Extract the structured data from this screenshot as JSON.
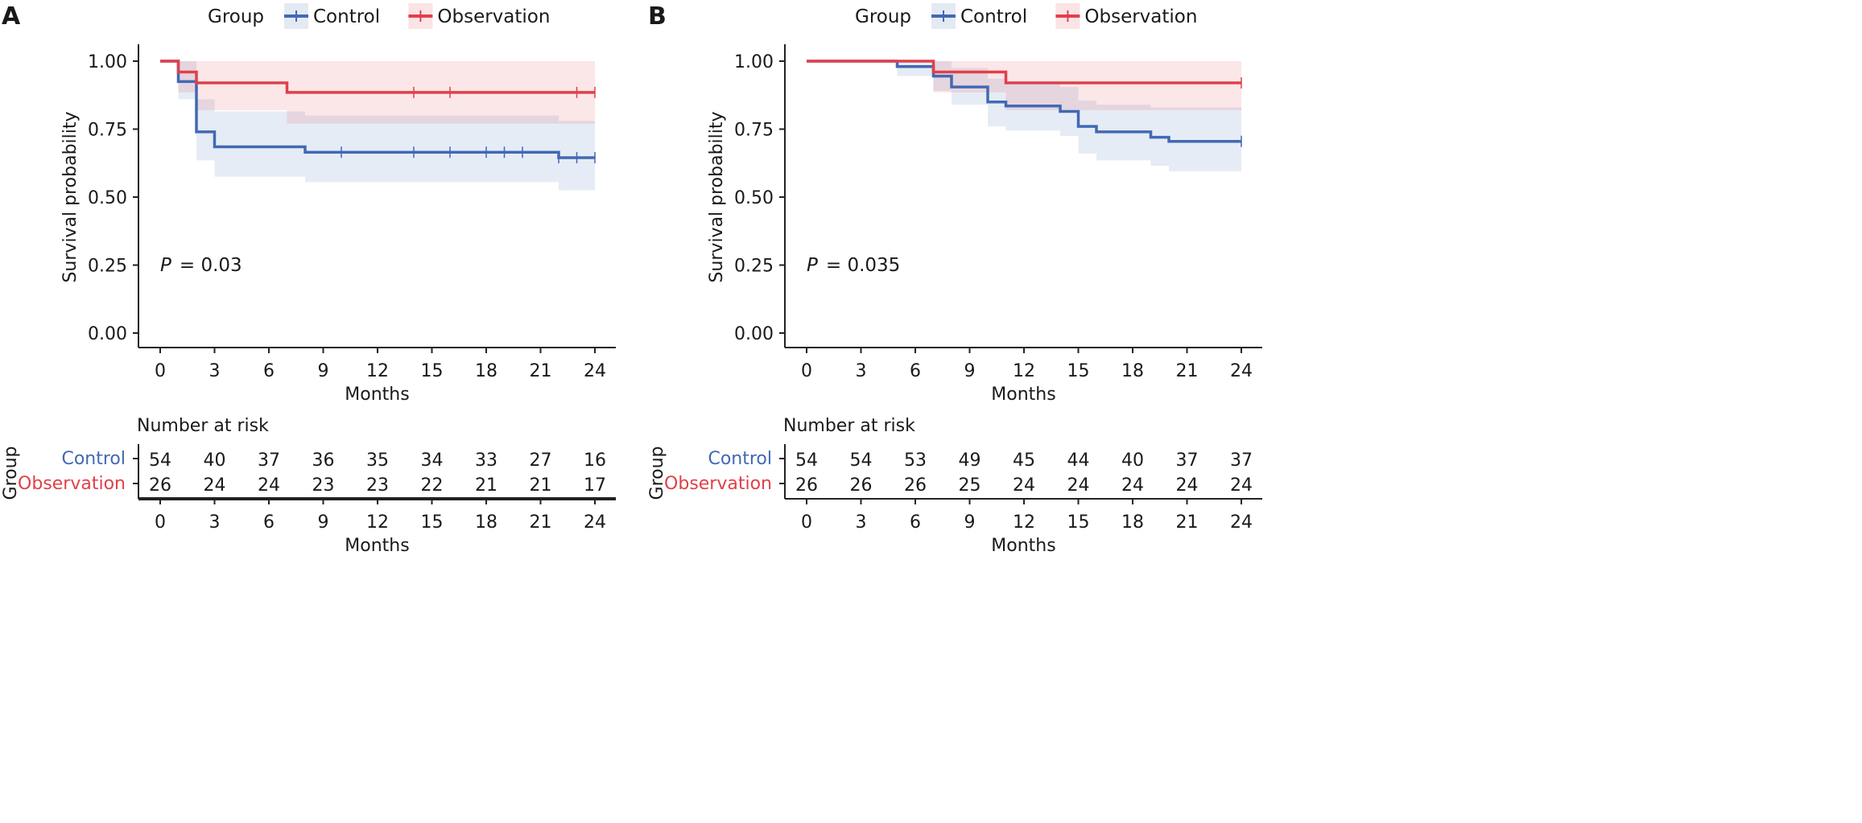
{
  "chart_data": [
    {
      "panel_label": "A",
      "type": "line",
      "legend_title": "Group",
      "xlabel": "Months",
      "ylabel": "Survival probability",
      "xlim": [
        0,
        24
      ],
      "ylim": [
        0,
        1
      ],
      "x_ticks": [
        "0",
        "3",
        "6",
        "9",
        "12",
        "15",
        "18",
        "21",
        "24"
      ],
      "y_ticks": [
        "0.00",
        "0.25",
        "0.50",
        "0.75",
        "1.00"
      ],
      "p_label": "P",
      "p_value": "= 0.03",
      "series": [
        {
          "name": "Control",
          "color": "#4169b4",
          "times": [
            0,
            1,
            2,
            3,
            8,
            22,
            24
          ],
          "surv": [
            1.0,
            0.925,
            0.74,
            0.685,
            0.665,
            0.645,
            0.645
          ],
          "lower": [
            1.0,
            0.86,
            0.635,
            0.575,
            0.555,
            0.525,
            0.525
          ],
          "upper": [
            1.0,
            1.0,
            0.86,
            0.815,
            0.8,
            0.78,
            0.78
          ],
          "censor_x": [
            10,
            14,
            16,
            18,
            19,
            20,
            22,
            23,
            24
          ]
        },
        {
          "name": "Observation",
          "color": "#e0404a",
          "times": [
            0,
            1,
            2,
            7,
            24
          ],
          "surv": [
            1.0,
            0.96,
            0.92,
            0.885,
            0.885
          ],
          "lower": [
            1.0,
            0.885,
            0.82,
            0.77,
            0.77
          ],
          "upper": [
            1.0,
            1.0,
            1.0,
            1.0,
            1.0
          ],
          "censor_x": [
            14,
            16,
            23,
            24
          ]
        }
      ],
      "risk_table": {
        "title": "Number at risk",
        "ylabel": "Group",
        "xlabel": "Months",
        "rows": [
          {
            "name": "Control",
            "values": [
              "54",
              "40",
              "37",
              "36",
              "35",
              "34",
              "33",
              "27",
              "16"
            ]
          },
          {
            "name": "Observation",
            "values": [
              "26",
              "24",
              "24",
              "23",
              "23",
              "22",
              "21",
              "21",
              "17"
            ]
          }
        ]
      }
    },
    {
      "panel_label": "B",
      "type": "line",
      "legend_title": "Group",
      "xlabel": "Months",
      "ylabel": "Survival probability",
      "xlim": [
        0,
        24
      ],
      "ylim": [
        0,
        1
      ],
      "x_ticks": [
        "0",
        "3",
        "6",
        "9",
        "12",
        "15",
        "18",
        "21",
        "24"
      ],
      "y_ticks": [
        "0.00",
        "0.25",
        "0.50",
        "0.75",
        "1.00"
      ],
      "p_label": "P",
      "p_value": "= 0.035",
      "series": [
        {
          "name": "Control",
          "color": "#4169b4",
          "times": [
            0,
            5,
            7,
            8,
            10,
            11,
            14,
            15,
            16,
            19,
            20,
            24
          ],
          "surv": [
            1.0,
            0.98,
            0.945,
            0.905,
            0.85,
            0.835,
            0.815,
            0.76,
            0.74,
            0.72,
            0.705,
            0.705
          ],
          "lower": [
            1.0,
            0.945,
            0.89,
            0.84,
            0.76,
            0.745,
            0.725,
            0.66,
            0.635,
            0.615,
            0.595,
            0.595
          ],
          "upper": [
            1.0,
            1.0,
            1.0,
            0.975,
            0.935,
            0.925,
            0.905,
            0.855,
            0.84,
            0.83,
            0.83,
            0.83
          ],
          "censor_x": [
            24
          ]
        },
        {
          "name": "Observation",
          "color": "#e0404a",
          "times": [
            0,
            7,
            11,
            24
          ],
          "surv": [
            1.0,
            0.96,
            0.92,
            0.92
          ],
          "lower": [
            1.0,
            0.885,
            0.82,
            0.82
          ],
          "upper": [
            1.0,
            1.0,
            1.0,
            1.0
          ],
          "censor_x": [
            24
          ]
        }
      ],
      "risk_table": {
        "title": "Number at risk",
        "ylabel": "Group",
        "xlabel": "Months",
        "rows": [
          {
            "name": "Control",
            "values": [
              "54",
              "54",
              "53",
              "49",
              "45",
              "44",
              "40",
              "37",
              "37"
            ]
          },
          {
            "name": "Observation",
            "values": [
              "26",
              "26",
              "26",
              "25",
              "24",
              "24",
              "24",
              "24",
              "24"
            ]
          }
        ]
      }
    }
  ]
}
